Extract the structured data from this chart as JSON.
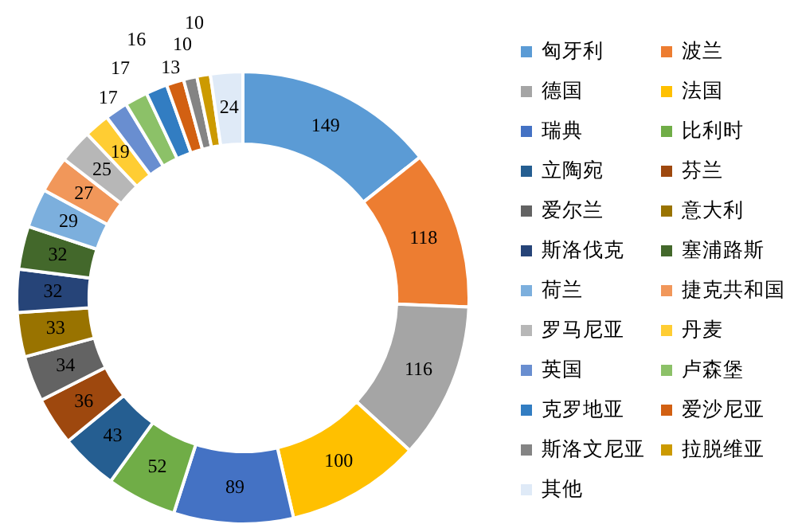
{
  "chart_data": {
    "type": "donut",
    "categories": [
      "匈牙利",
      "波兰",
      "德国",
      "法国",
      "瑞典",
      "比利时",
      "立陶宛",
      "芬兰",
      "爱尔兰",
      "意大利",
      "斯洛伐克",
      "塞浦路斯",
      "荷兰",
      "捷克共和国",
      "罗马尼亚",
      "丹麦",
      "英国",
      "卢森堡",
      "克罗地亚",
      "爱沙尼亚",
      "斯洛文尼亚",
      "拉脱维亚",
      "其他"
    ],
    "values": [
      149,
      118,
      116,
      100,
      89,
      52,
      43,
      36,
      34,
      33,
      32,
      32,
      29,
      27,
      25,
      19,
      17,
      17,
      16,
      13,
      10,
      10,
      24
    ],
    "colors": [
      "#5b9bd5",
      "#ed7d31",
      "#a5a5a5",
      "#ffc000",
      "#4472c4",
      "#70ad47",
      "#255e91",
      "#9e480e",
      "#636363",
      "#997300",
      "#264478",
      "#43682b",
      "#7cafdd",
      "#f1975a",
      "#b7b7b7",
      "#ffcd33",
      "#698ed0",
      "#8cc168",
      "#327dc2",
      "#d26012",
      "#848484",
      "#cc9a00",
      "#dfeaf7"
    ],
    "data_labels": true,
    "legend": "right"
  }
}
